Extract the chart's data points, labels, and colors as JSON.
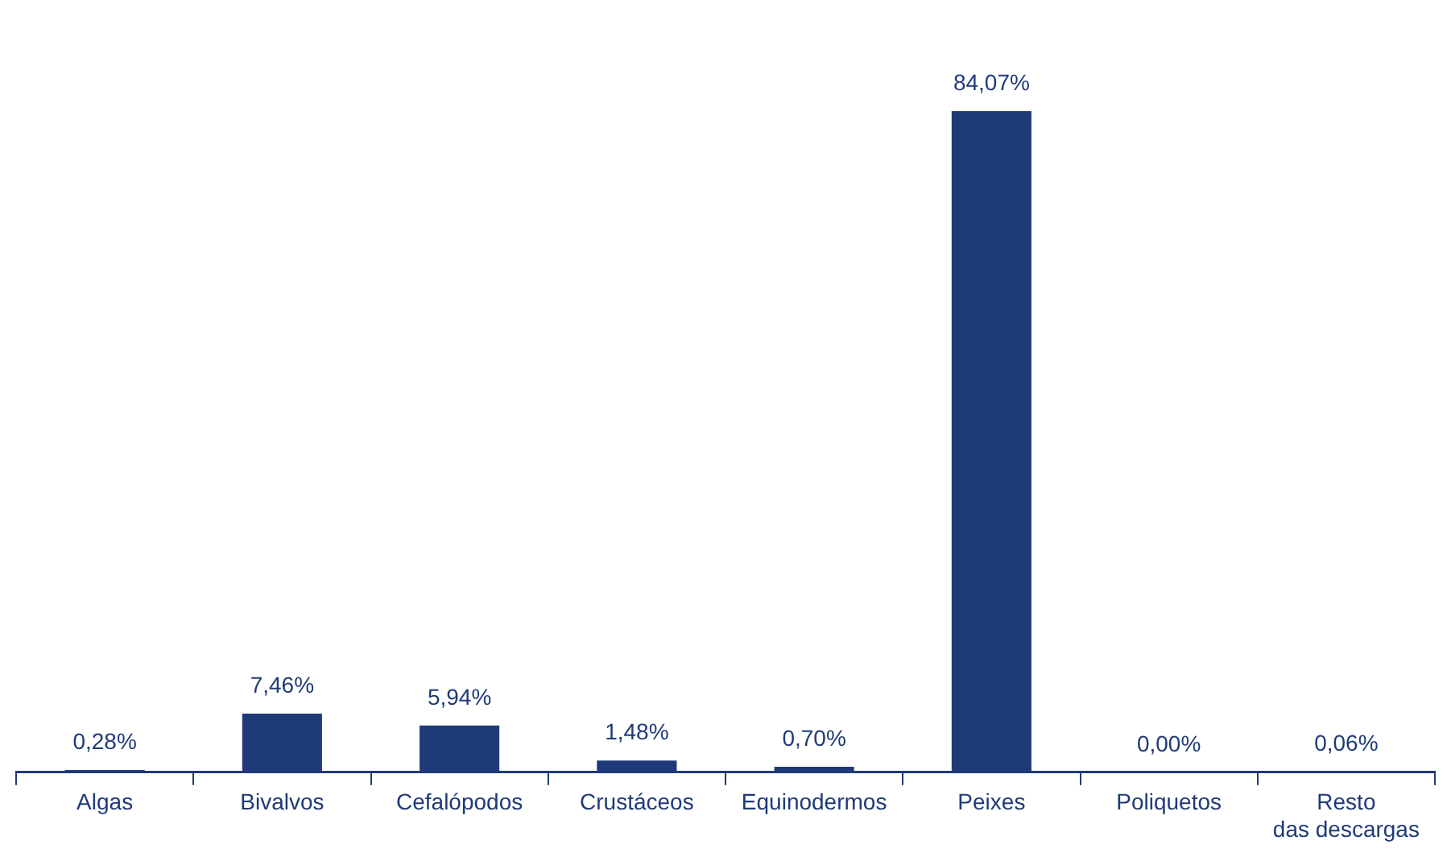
{
  "chart_data": {
    "type": "bar",
    "categories": [
      "Algas",
      "Bivalvos",
      "Cefalópodos",
      "Crustáceos",
      "Equinodermos",
      "Peixes",
      "Poliquetos",
      "Resto das descargas"
    ],
    "values": [
      0.28,
      7.46,
      5.94,
      1.48,
      0.7,
      84.07,
      0.0,
      0.06
    ],
    "value_labels": [
      "0,28%",
      "7,46%",
      "5,94%",
      "1,48%",
      "0,70%",
      "84,07%",
      "0,00%",
      "0,06%"
    ],
    "color": "#1f3a78",
    "grid": false,
    "legend": false
  }
}
